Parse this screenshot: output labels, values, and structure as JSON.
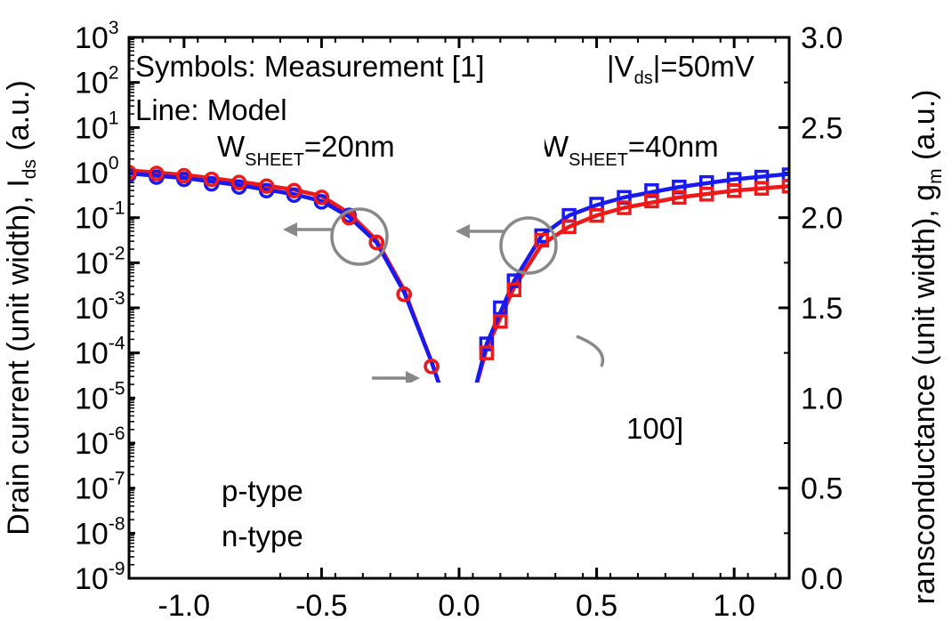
{
  "chart_data": {
    "type": "line",
    "xlabel": "",
    "ylabel": "Drain current (unit width), I",
    "ylabel_sub": "ds",
    "ylabel_tail": " (a.u.)",
    "y2label": "ransconductance (unit width), g",
    "y2label_sub": "m",
    "y2label_tail": " (a.u.)",
    "xlim": [
      -1.2,
      1.2
    ],
    "ylim_log10": [
      -9,
      3
    ],
    "y2lim": [
      0.0,
      3.0
    ],
    "x_ticks": [
      "-1.0",
      "-0.5",
      "0.0",
      "0.5",
      "1.0"
    ],
    "x_tick_values": [
      -1.0,
      -0.5,
      0.0,
      0.5,
      1.0
    ],
    "y_tick_base": "10",
    "y_tick_exponents": [
      "3",
      "2",
      "1",
      "0",
      "-1",
      "-2",
      "-3",
      "-4",
      "-5",
      "-6",
      "-7",
      "-8",
      "-9"
    ],
    "y_tick_values_log10": [
      3,
      2,
      1,
      0,
      -1,
      -2,
      -3,
      -4,
      -5,
      -6,
      -7,
      -8,
      -9
    ],
    "y2_ticks": [
      "3.0",
      "2.5",
      "2.0",
      "1.5",
      "1.0",
      "0.5",
      "0.0"
    ],
    "y2_tick_values": [
      3.0,
      2.5,
      2.0,
      1.5,
      1.0,
      0.5,
      0.0
    ],
    "annotations": {
      "symbols": "Symbols: Measurement [1]",
      "line": "Line: Model",
      "vds_pre": "|V",
      "vds_sub": "ds",
      "vds_post": "|=50mV",
      "w1_pre": "W",
      "w1_sub": "SHEET",
      "w1_post": "=20nm",
      "w2_pre": "W",
      "w2_sub": "SHEET",
      "w2_post": "=40nm",
      "orientation": "100]",
      "legend_p": "p-type",
      "legend_n": "n-type"
    },
    "colors": {
      "p_type": "#1a1aee",
      "n_type": "#ee1a1a",
      "annotation": "#888888"
    },
    "series": [
      {
        "name": "p-type",
        "kind": "measured",
        "marker": "circle",
        "color": "#1a1aee",
        "x": [
          -1.2,
          -1.1,
          -1.0,
          -0.9,
          -0.8,
          -0.7,
          -0.6,
          -0.5,
          -0.4,
          -0.3,
          -0.2,
          -0.1,
          -0.02
        ],
        "y_log10": [
          -0.05,
          -0.1,
          -0.15,
          -0.25,
          -0.32,
          -0.4,
          -0.5,
          -0.65,
          -0.95,
          -1.55,
          -2.7,
          -4.3,
          -5.5
        ]
      },
      {
        "name": "n-type",
        "kind": "measured",
        "marker": "circle",
        "color": "#ee1a1a",
        "x": [
          -1.2,
          -1.1,
          -1.0,
          -0.9,
          -0.8,
          -0.7,
          -0.6,
          -0.5,
          -0.4,
          -0.3,
          -0.2,
          -0.1
        ],
        "y_log10": [
          0.0,
          -0.02,
          -0.07,
          -0.15,
          -0.22,
          -0.3,
          -0.4,
          -0.55,
          -1.0,
          -1.55,
          -2.7,
          -4.3
        ]
      },
      {
        "name": "p-type",
        "kind": "measured",
        "marker": "square",
        "color": "#1a1aee",
        "x": [
          0.0,
          0.05,
          0.1,
          0.15,
          0.2,
          0.3,
          0.4,
          0.5,
          0.6,
          0.7,
          0.8,
          0.9,
          1.0,
          1.1,
          1.2
        ],
        "y_log10": [
          -5.6,
          -5.3,
          -3.8,
          -3.0,
          -2.4,
          -1.4,
          -0.95,
          -0.7,
          -0.55,
          -0.4,
          -0.32,
          -0.22,
          -0.15,
          -0.1,
          -0.05
        ]
      },
      {
        "name": "n-type",
        "kind": "measured",
        "marker": "square",
        "color": "#ee1a1a",
        "x": [
          0.0,
          0.05,
          0.1,
          0.15,
          0.2,
          0.3,
          0.4,
          0.5,
          0.6,
          0.7,
          0.8,
          0.9,
          1.0,
          1.1,
          1.2
        ],
        "y_log10": [
          -5.5,
          -5.2,
          -4.0,
          -3.3,
          -2.6,
          -1.5,
          -1.2,
          -0.95,
          -0.78,
          -0.63,
          -0.55,
          -0.48,
          -0.4,
          -0.35,
          -0.3
        ]
      },
      {
        "name": "n-type",
        "kind": "model",
        "color": "#ee1a1a",
        "x": [
          -1.2,
          -1.0,
          -0.8,
          -0.6,
          -0.5,
          -0.4,
          -0.3,
          -0.2,
          -0.1,
          -0.05,
          0.0,
          0.05,
          0.1,
          0.2,
          0.3,
          0.4,
          0.5,
          0.6,
          0.8,
          1.0,
          1.2
        ],
        "y_log10": [
          0.05,
          -0.05,
          -0.2,
          -0.38,
          -0.52,
          -0.9,
          -1.5,
          -2.6,
          -4.2,
          -5.1,
          -5.7,
          -5.0,
          -3.9,
          -2.55,
          -1.6,
          -1.2,
          -0.95,
          -0.78,
          -0.55,
          -0.4,
          -0.3
        ]
      },
      {
        "name": "p-type",
        "kind": "model",
        "color": "#1a1aee",
        "x": [
          -1.2,
          -1.0,
          -0.8,
          -0.6,
          -0.5,
          -0.4,
          -0.3,
          -0.2,
          -0.1,
          -0.05,
          0.0,
          0.05,
          0.1,
          0.2,
          0.3,
          0.4,
          0.5,
          0.6,
          0.8,
          1.0,
          1.2
        ],
        "y_log10": [
          -0.02,
          -0.12,
          -0.28,
          -0.48,
          -0.63,
          -0.98,
          -1.55,
          -2.65,
          -4.2,
          -5.1,
          -5.7,
          -5.0,
          -3.8,
          -2.4,
          -1.4,
          -0.95,
          -0.72,
          -0.55,
          -0.32,
          -0.15,
          -0.03
        ]
      }
    ]
  }
}
